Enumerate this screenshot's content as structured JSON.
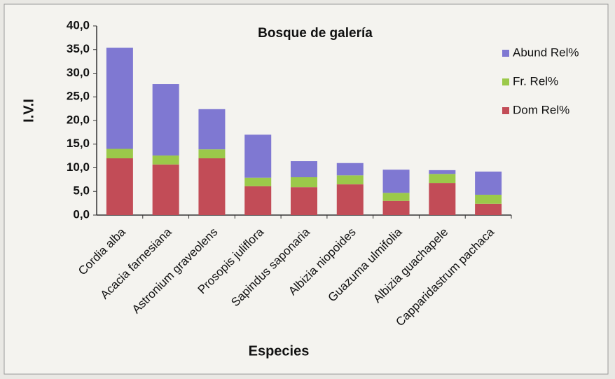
{
  "chart_data": {
    "type": "stacked-bar",
    "title": "Bosque de galería",
    "x_label": "Especies",
    "y_label": "I.V.I",
    "categories": [
      "Cordia alba",
      "Acacia farnesiana",
      "Astronium graveolens",
      "Prosopis juliflora",
      "Sapindus saponaria",
      "Albizia niopoides",
      "Guazuma ulmifolia",
      "Albizia guachapele",
      "Capparidastrum pachaca"
    ],
    "series": [
      {
        "name": "Dom Rel%",
        "color": "#c24c57",
        "values": [
          12.0,
          10.7,
          12.0,
          6.1,
          5.9,
          6.5,
          3.0,
          6.8,
          2.4
        ]
      },
      {
        "name": "Fr. Rel%",
        "color": "#9bc94a",
        "values": [
          2.0,
          1.9,
          1.9,
          1.8,
          2.1,
          1.9,
          1.7,
          1.9,
          1.9
        ]
      },
      {
        "name": "Abund Rel%",
        "color": "#7f78d2",
        "values": [
          21.4,
          15.1,
          8.5,
          9.1,
          3.4,
          2.6,
          4.9,
          0.8,
          4.9
        ]
      }
    ],
    "ylim": [
      0,
      40
    ],
    "yticks": [
      {
        "value": 0,
        "label": "0,0"
      },
      {
        "value": 5,
        "label": "5,0"
      },
      {
        "value": 10,
        "label": "10,0"
      },
      {
        "value": 15,
        "label": "15,0"
      },
      {
        "value": 20,
        "label": "20,0"
      },
      {
        "value": 25,
        "label": "25,0"
      },
      {
        "value": 30,
        "label": "30,0"
      },
      {
        "value": 35,
        "label": "35,0"
      },
      {
        "value": 40,
        "label": "40,0"
      }
    ],
    "legend": "right"
  }
}
